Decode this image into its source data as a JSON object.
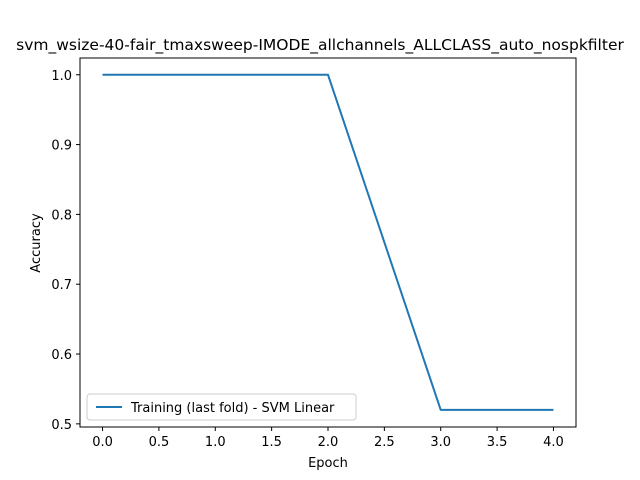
{
  "chart_data": {
    "type": "line",
    "title": "svm_wsize-40-fair_tmaxsweep-IMODE_allchannels_ALLCLASS_auto_nospkfilter",
    "xlabel": "Epoch",
    "ylabel": "Accuracy",
    "xlim": [
      -0.2,
      4.2
    ],
    "ylim": [
      0.4955,
      1.024
    ],
    "xticks": [
      0.0,
      0.5,
      1.0,
      1.5,
      2.0,
      2.5,
      3.0,
      3.5,
      4.0
    ],
    "xtick_labels": [
      "0.0",
      "0.5",
      "1.0",
      "1.5",
      "2.0",
      "2.5",
      "3.0",
      "3.5",
      "4.0"
    ],
    "yticks": [
      0.5,
      0.6,
      0.7,
      0.8,
      0.9,
      1.0
    ],
    "ytick_labels": [
      "0.5",
      "0.6",
      "0.7",
      "0.8",
      "0.9",
      "1.0"
    ],
    "grid": false,
    "legend_position": "lower-left",
    "series": [
      {
        "name": "Training (last fold) - SVM Linear",
        "color": "#1f77b4",
        "x": [
          0,
          1,
          2,
          3,
          4
        ],
        "y": [
          1.0,
          1.0,
          1.0,
          0.52,
          0.52
        ]
      }
    ]
  }
}
